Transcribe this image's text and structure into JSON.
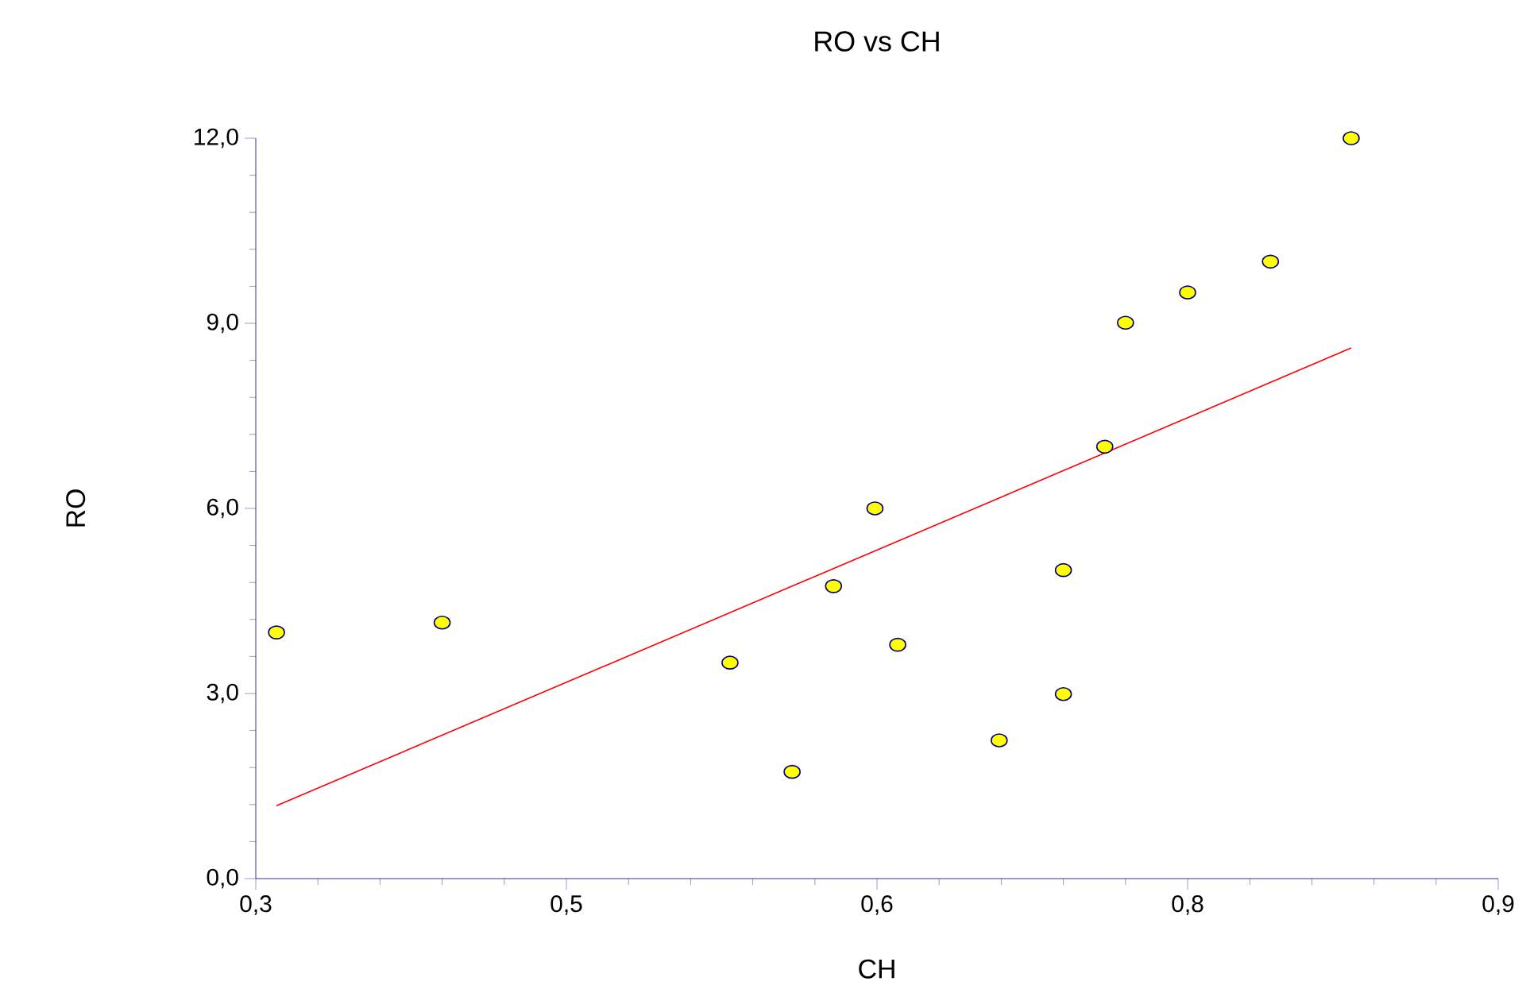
{
  "chart_data": {
    "type": "scatter",
    "title": "RO vs CH",
    "xlabel": "CH",
    "ylabel": "RO",
    "xlim": [
      0.3,
      0.9
    ],
    "ylim": [
      0,
      12
    ],
    "xticks": [
      {
        "value": 0.3,
        "label": "0,3"
      },
      {
        "value": 0.45,
        "label": "0,5"
      },
      {
        "value": 0.6,
        "label": "0,6"
      },
      {
        "value": 0.75,
        "label": "0,8"
      },
      {
        "value": 0.9,
        "label": "0,9"
      }
    ],
    "yticks": [
      {
        "value": 0,
        "label": "0,0"
      },
      {
        "value": 3,
        "label": "3,0"
      },
      {
        "value": 6,
        "label": "6,0"
      },
      {
        "value": 9,
        "label": "9,0"
      },
      {
        "value": 12,
        "label": "12,0"
      }
    ],
    "grid": false,
    "series": [
      {
        "marker": "circle",
        "color": "#ffff00",
        "x": [
          0.31,
          0.39,
          0.529,
          0.559,
          0.579,
          0.599,
          0.61,
          0.659,
          0.69,
          0.69,
          0.71,
          0.72,
          0.75,
          0.79,
          0.829
        ],
        "values": [
          3.99,
          4.15,
          3.5,
          1.73,
          4.74,
          6.0,
          3.79,
          2.24,
          5.0,
          2.99,
          7.0,
          9.01,
          9.5,
          10.0,
          12.0
        ]
      },
      {
        "type": "line",
        "marker": "none",
        "color": "#ff0000",
        "x": [
          0.31,
          0.829
        ],
        "values": [
          1.18,
          8.6
        ]
      }
    ]
  }
}
